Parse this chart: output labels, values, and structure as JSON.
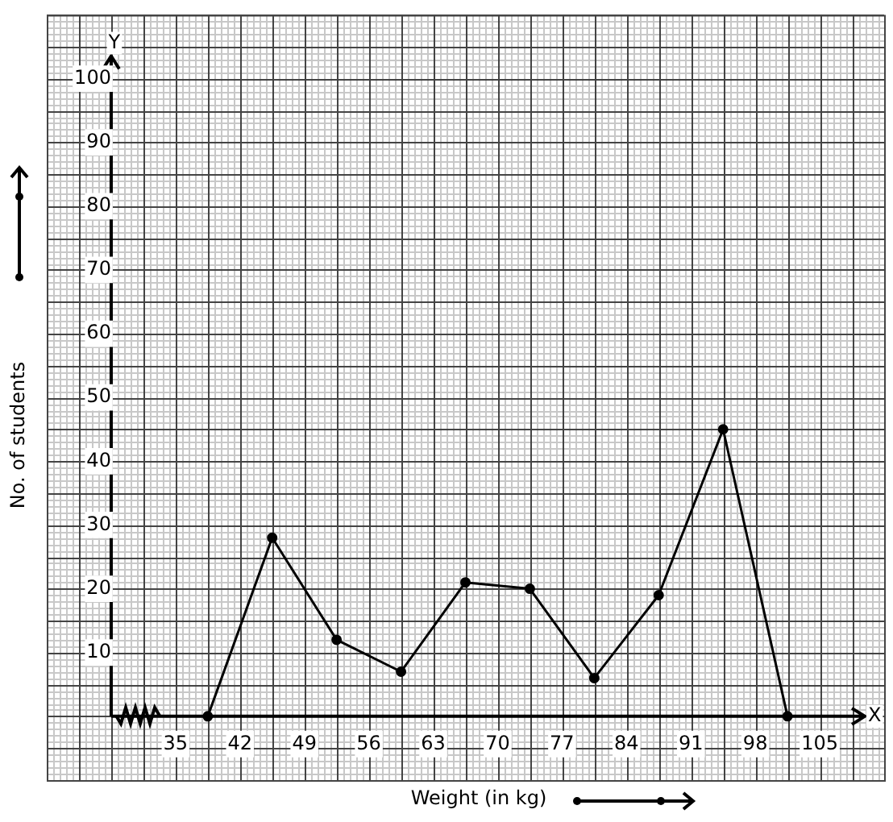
{
  "chart_data": {
    "type": "line",
    "xlabel": "Weight (in kg)",
    "ylabel": "No. of students",
    "annotations": [
      "Y",
      "X"
    ],
    "x": [
      38.5,
      45.5,
      52.5,
      59.5,
      66.5,
      73.5,
      80.5,
      87.5,
      94.5,
      101.5
    ],
    "series": [
      {
        "color": "#000000",
        "values": [
          0,
          28,
          12,
          7,
          21,
          20,
          6,
          19,
          45,
          0
        ]
      }
    ],
    "xlim": [
      21,
      112
    ],
    "xticks": [
      35,
      42,
      49,
      56,
      63,
      70,
      77,
      84,
      91,
      98,
      105
    ],
    "ylim": [
      -10,
      110
    ],
    "yticks": [
      10,
      20,
      30,
      40,
      50,
      60,
      70,
      80,
      90,
      100
    ],
    "grid": true,
    "legend": false,
    "marker": "circle",
    "line_style": "solid"
  }
}
